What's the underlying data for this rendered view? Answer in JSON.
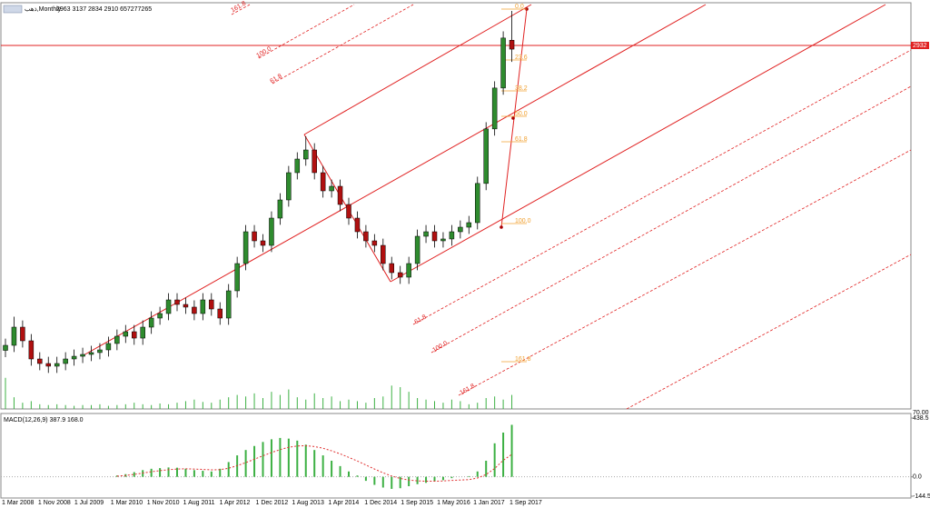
{
  "chart_data": [
    {
      "type": "candlestick",
      "title": "ذهب,Monthly",
      "header_values": "2963 3137 2834 2910 657277265",
      "open": [
        1120,
        1150,
        1258,
        1177,
        1069,
        1042,
        1026,
        1042,
        1069,
        1085,
        1096,
        1107,
        1123,
        1161,
        1204,
        1231,
        1193,
        1258,
        1312,
        1339,
        1420,
        1393,
        1377,
        1339,
        1420,
        1366,
        1312,
        1474,
        1636,
        1825,
        1771,
        1744,
        1906,
        2014,
        2176,
        2257,
        2311,
        2176,
        2068,
        2095,
        1987,
        1906,
        1825,
        1771,
        1744,
        1636,
        1582,
        1555,
        1636,
        1798,
        1825,
        1771,
        1782,
        1825,
        1852,
        1879,
        2112,
        2436,
        2679,
        2963
      ],
      "high": [
        1190,
        1320,
        1298,
        1217,
        1109,
        1082,
        1082,
        1109,
        1125,
        1136,
        1147,
        1163,
        1201,
        1244,
        1271,
        1271,
        1298,
        1352,
        1379,
        1460,
        1460,
        1433,
        1417,
        1460,
        1460,
        1406,
        1514,
        1676,
        1865,
        1865,
        1811,
        1946,
        2054,
        2216,
        2297,
        2392,
        2351,
        2216,
        2135,
        2135,
        2027,
        1946,
        1865,
        1811,
        1784,
        1676,
        1622,
        1676,
        1838,
        1865,
        1865,
        1822,
        1865,
        1892,
        1919,
        2152,
        2476,
        2719,
        3016,
        3137
      ],
      "low": [
        1080,
        1110,
        1137,
        1029,
        1002,
        986,
        986,
        1002,
        1029,
        1045,
        1056,
        1067,
        1083,
        1121,
        1164,
        1153,
        1153,
        1218,
        1272,
        1299,
        1353,
        1337,
        1299,
        1299,
        1326,
        1272,
        1272,
        1434,
        1596,
        1731,
        1704,
        1704,
        1866,
        1974,
        2136,
        2217,
        2136,
        2028,
        2028,
        1947,
        1866,
        1785,
        1731,
        1704,
        1596,
        1542,
        1515,
        1515,
        1596,
        1758,
        1731,
        1731,
        1742,
        1785,
        1812,
        1839,
        2072,
        2396,
        2639,
        2834
      ],
      "close": [
        1150,
        1258,
        1177,
        1069,
        1042,
        1026,
        1042,
        1069,
        1085,
        1096,
        1107,
        1123,
        1161,
        1204,
        1231,
        1193,
        1258,
        1312,
        1339,
        1420,
        1393,
        1377,
        1339,
        1420,
        1366,
        1312,
        1474,
        1636,
        1825,
        1771,
        1744,
        1906,
        2014,
        2176,
        2257,
        2311,
        2176,
        2068,
        2095,
        1987,
        1906,
        1825,
        1771,
        1744,
        1636,
        1582,
        1555,
        1636,
        1798,
        1825,
        1771,
        1782,
        1825,
        1852,
        1879,
        2112,
        2436,
        2679,
        2976,
        2910
      ],
      "volume": [
        40,
        15,
        8,
        10,
        6,
        5,
        6,
        5,
        4,
        5,
        5,
        6,
        4,
        5,
        6,
        8,
        6,
        5,
        7,
        6,
        8,
        10,
        12,
        9,
        8,
        12,
        15,
        18,
        16,
        20,
        14,
        22,
        18,
        25,
        15,
        12,
        20,
        14,
        16,
        10,
        12,
        10,
        8,
        14,
        16,
        30,
        28,
        22,
        14,
        12,
        10,
        8,
        12,
        10,
        6,
        8,
        14,
        16,
        12,
        18
      ],
      "volume_label": "70.00",
      "current_price": 2932,
      "up_color": "#2e8b2e",
      "down_color": "#b01010",
      "ylim": [
        772,
        3175
      ],
      "volume_lim": [
        0,
        70
      ],
      "fib_labels": [
        "0.0",
        "23.6",
        "38.2",
        "50.0",
        "61.8",
        "100.0",
        "161.8"
      ],
      "channel_labels": [
        "161.8",
        "100.0",
        "61.8",
        "61.8",
        "100.0",
        "161.8"
      ],
      "x_tick_labels": [
        "1 Mar 2008",
        "1 Nov 2008",
        "1 Jul 2009",
        "1 Mar 2010",
        "1 Nov 2010",
        "1 Aug 2011",
        "1 Apr 2012",
        "1 Dec 2012",
        "1 Aug 2013",
        "1 Apr 2014",
        "1 Dec 2014",
        "1 Sep 2015",
        "1 May 2016",
        "1 Jan 2017",
        "1 Sep 2017"
      ]
    },
    {
      "type": "macd",
      "title": "MACD(12,26,9) 387.9 168.0",
      "macd": [
        null,
        null,
        null,
        null,
        null,
        null,
        null,
        null,
        null,
        null,
        null,
        null,
        null,
        10,
        20,
        35,
        50,
        60,
        65,
        70,
        68,
        60,
        50,
        45,
        40,
        60,
        110,
        160,
        200,
        230,
        260,
        280,
        290,
        285,
        270,
        240,
        200,
        160,
        120,
        80,
        40,
        10,
        -30,
        -60,
        -80,
        -90,
        -85,
        -70,
        -55,
        -45,
        -35,
        -25,
        -10,
        0,
        5,
        40,
        120,
        250,
        330,
        387.9
      ],
      "signal": [
        null,
        null,
        null,
        null,
        null,
        null,
        null,
        null,
        null,
        null,
        null,
        null,
        null,
        5,
        10,
        18,
        28,
        38,
        46,
        53,
        58,
        60,
        58,
        55,
        52,
        53,
        64,
        83,
        106,
        131,
        157,
        181,
        203,
        220,
        230,
        232,
        226,
        213,
        194,
        171,
        145,
        118,
        88,
        58,
        30,
        6,
        -12,
        -24,
        -30,
        -33,
        -33,
        -31,
        -27,
        -24,
        -21,
        -9,
        17,
        62,
        123,
        168
      ],
      "bar_color": "#3cb043",
      "signal_color": "#e03030",
      "ylim": [
        -144.5,
        438.5
      ],
      "yticks": [
        -144.5,
        {
          "value": 0,
          "label": "0.0"
        },
        438.5
      ]
    }
  ]
}
